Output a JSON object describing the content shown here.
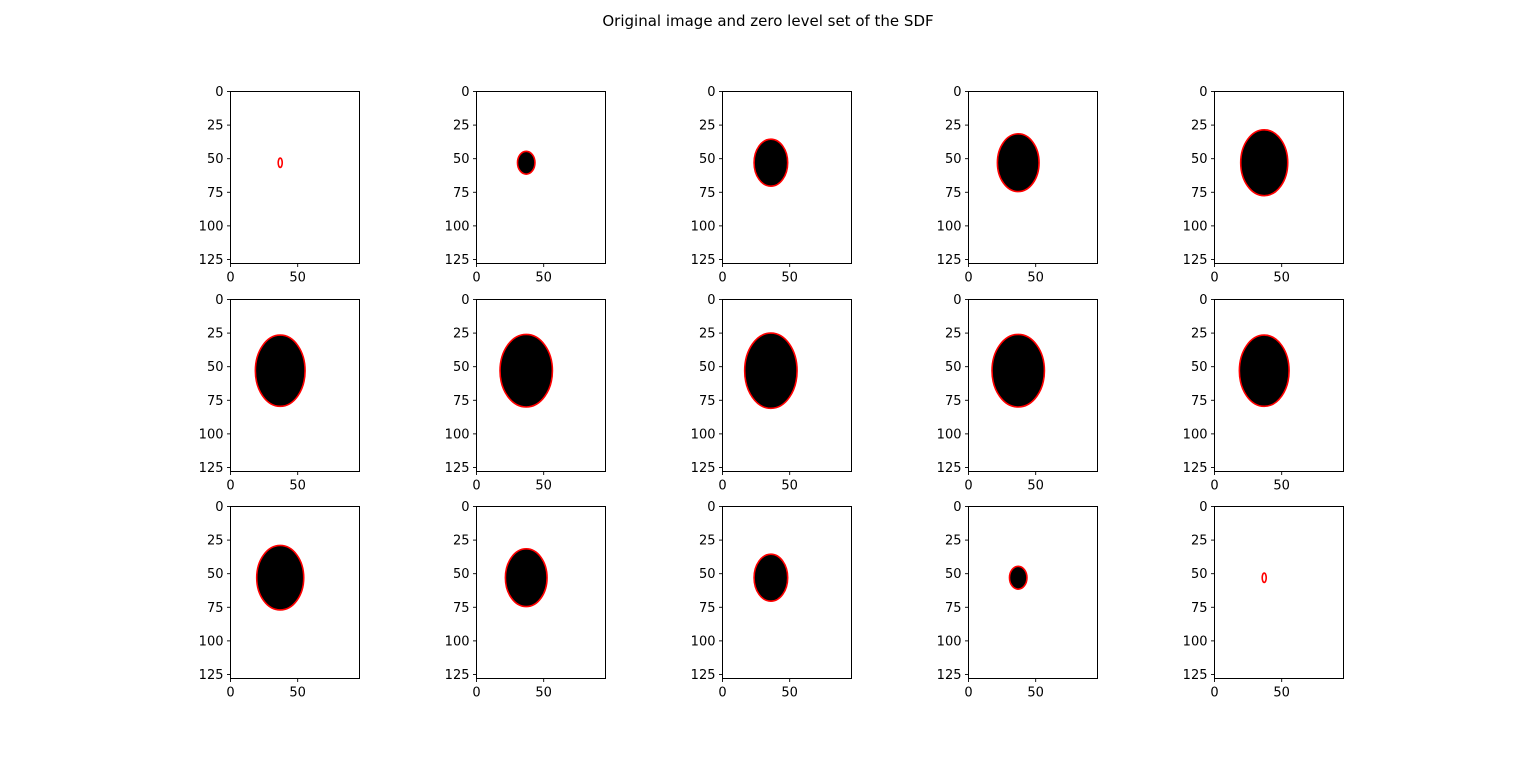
{
  "figure": {
    "title": "Original image and zero level set of the SDF",
    "rows": 3,
    "cols": 5
  },
  "colors": {
    "fill": "#000000",
    "contour": "#ff0000",
    "background": "#ffffff",
    "axes": "#000000"
  },
  "chart_data": {
    "type": "image-grid",
    "description_free": true,
    "xlim": [
      0,
      96
    ],
    "ylim": [
      128,
      0
    ],
    "xticks": [
      0,
      50
    ],
    "yticks": [
      0,
      25,
      50,
      75,
      100,
      125
    ],
    "panels": [
      {
        "cx": 37,
        "cy": 53,
        "rx": 1.5,
        "ry": 3.5,
        "filled": false
      },
      {
        "cx": 37,
        "cy": 53,
        "rx": 6.5,
        "ry": 8.5,
        "filled": true
      },
      {
        "cx": 36,
        "cy": 53,
        "rx": 12.5,
        "ry": 17.5,
        "filled": true
      },
      {
        "cx": 37,
        "cy": 53,
        "rx": 15.5,
        "ry": 21.5,
        "filled": true
      },
      {
        "cx": 37,
        "cy": 53,
        "rx": 17.5,
        "ry": 24.5,
        "filled": true
      },
      {
        "cx": 37,
        "cy": 53,
        "rx": 18.5,
        "ry": 26.5,
        "filled": true
      },
      {
        "cx": 37,
        "cy": 53,
        "rx": 19.5,
        "ry": 27,
        "filled": true
      },
      {
        "cx": 36,
        "cy": 53,
        "rx": 19.5,
        "ry": 28,
        "filled": true
      },
      {
        "cx": 37,
        "cy": 53,
        "rx": 19.5,
        "ry": 27,
        "filled": true
      },
      {
        "cx": 37,
        "cy": 53,
        "rx": 18.5,
        "ry": 26.5,
        "filled": true
      },
      {
        "cx": 37,
        "cy": 53,
        "rx": 17.5,
        "ry": 24,
        "filled": true
      },
      {
        "cx": 37,
        "cy": 53,
        "rx": 15.5,
        "ry": 21.5,
        "filled": true
      },
      {
        "cx": 36,
        "cy": 53,
        "rx": 12.5,
        "ry": 17.5,
        "filled": true
      },
      {
        "cx": 37,
        "cy": 53,
        "rx": 6.5,
        "ry": 8.5,
        "filled": true
      },
      {
        "cx": 37,
        "cy": 53,
        "rx": 1.5,
        "ry": 3.5,
        "filled": false
      }
    ]
  }
}
